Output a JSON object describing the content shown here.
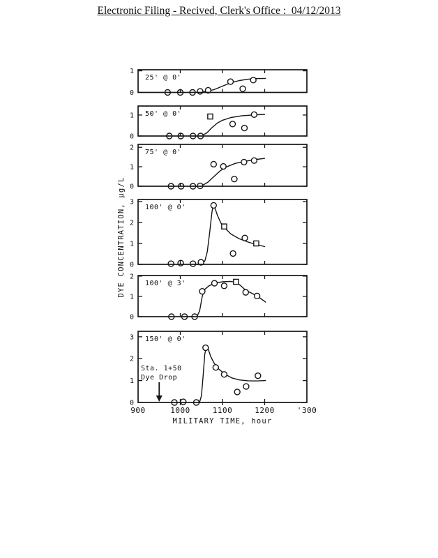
{
  "header": {
    "title": "Electronic Filing - Recived, Clerk's Office :  04/12/2013"
  },
  "colors": {
    "ink": "#151515",
    "paper": "#ffffff"
  },
  "chart_data": {
    "type": "line",
    "title": "",
    "xlabel": "MILITARY TIME, hour",
    "ylabel": "DYE CONCENTRATION, µg/L",
    "xlim": [
      900,
      1300
    ],
    "xticks": [
      900,
      1000,
      1100,
      1200,
      1300
    ],
    "xtick_labels": [
      "900",
      "1000",
      "1100",
      "1200",
      "'300"
    ],
    "inner_xticks": [
      1000,
      1100,
      1200
    ],
    "grid": false,
    "legend": "none",
    "panels": [
      {
        "label": "25' @ 0'",
        "ylim": [
          0,
          1.05
        ],
        "yticks": [
          0,
          1
        ],
        "points": [
          {
            "t": 970,
            "v": 0,
            "m": "circle"
          },
          {
            "t": 1000,
            "v": 0,
            "m": "circle"
          },
          {
            "t": 1029,
            "v": 0,
            "m": "circle"
          },
          {
            "t": 1047,
            "v": 0.05,
            "m": "circle"
          },
          {
            "t": 1066,
            "v": 0.1,
            "m": "circle"
          },
          {
            "t": 1119,
            "v": 0.5,
            "m": "circle"
          },
          {
            "t": 1148,
            "v": 0.17,
            "m": "circle"
          },
          {
            "t": 1173,
            "v": 0.57,
            "m": "circle"
          }
        ],
        "curve": [
          [
            1020,
            0
          ],
          [
            1045,
            0.01
          ],
          [
            1060,
            0.04
          ],
          [
            1080,
            0.13
          ],
          [
            1100,
            0.29
          ],
          [
            1120,
            0.45
          ],
          [
            1140,
            0.55
          ],
          [
            1160,
            0.61
          ],
          [
            1180,
            0.64
          ],
          [
            1202,
            0.65
          ]
        ]
      },
      {
        "label": "50' @ 0'",
        "ylim": [
          0,
          1.43
        ],
        "yticks": [
          0,
          1
        ],
        "points": [
          {
            "t": 974,
            "v": 0,
            "m": "circle"
          },
          {
            "t": 1001,
            "v": 0,
            "m": "circle"
          },
          {
            "t": 1030,
            "v": 0,
            "m": "circle"
          },
          {
            "t": 1048,
            "v": 0,
            "m": "circle"
          },
          {
            "t": 1071,
            "v": 0.93,
            "m": "square"
          },
          {
            "t": 1124,
            "v": 0.57,
            "m": "circle"
          },
          {
            "t": 1152,
            "v": 0.38,
            "m": "circle"
          },
          {
            "t": 1175,
            "v": 1.02,
            "m": "circle"
          }
        ],
        "curve": [
          [
            1040,
            0
          ],
          [
            1052,
            0.03
          ],
          [
            1063,
            0.15
          ],
          [
            1075,
            0.4
          ],
          [
            1088,
            0.62
          ],
          [
            1100,
            0.75
          ],
          [
            1120,
            0.88
          ],
          [
            1145,
            0.96
          ],
          [
            1170,
            1.0
          ],
          [
            1200,
            1.03
          ]
        ]
      },
      {
        "label": "75' @ 0'",
        "ylim": [
          0,
          2.15
        ],
        "yticks": [
          0,
          1,
          2
        ],
        "points": [
          {
            "t": 978,
            "v": 0,
            "m": "circle"
          },
          {
            "t": 1002,
            "v": 0,
            "m": "circle"
          },
          {
            "t": 1030,
            "v": 0,
            "m": "circle"
          },
          {
            "t": 1047,
            "v": 0.02,
            "m": "circle"
          },
          {
            "t": 1079,
            "v": 1.13,
            "m": "circle"
          },
          {
            "t": 1102,
            "v": 1.02,
            "m": "circle"
          },
          {
            "t": 1128,
            "v": 0.37,
            "m": "circle"
          },
          {
            "t": 1151,
            "v": 1.24,
            "m": "circle"
          },
          {
            "t": 1175,
            "v": 1.32,
            "m": "circle"
          }
        ],
        "curve": [
          [
            1040,
            0
          ],
          [
            1052,
            0.04
          ],
          [
            1065,
            0.2
          ],
          [
            1080,
            0.5
          ],
          [
            1095,
            0.8
          ],
          [
            1110,
            1.0
          ],
          [
            1130,
            1.17
          ],
          [
            1150,
            1.27
          ],
          [
            1175,
            1.36
          ],
          [
            1200,
            1.43
          ]
        ]
      },
      {
        "label": "100' @ 0'",
        "ylim": [
          0,
          3.1
        ],
        "yticks": [
          0,
          1,
          2,
          3
        ],
        "points": [
          {
            "t": 978,
            "v": 0.03,
            "m": "circle"
          },
          {
            "t": 1001,
            "v": 0.06,
            "m": "circle"
          },
          {
            "t": 1030,
            "v": 0.03,
            "m": "circle"
          },
          {
            "t": 1049,
            "v": 0.1,
            "m": "circle"
          },
          {
            "t": 1079,
            "v": 2.82,
            "m": "circle"
          },
          {
            "t": 1104,
            "v": 1.81,
            "m": "square"
          },
          {
            "t": 1125,
            "v": 0.52,
            "m": "circle"
          },
          {
            "t": 1153,
            "v": 1.26,
            "m": "circle"
          },
          {
            "t": 1180,
            "v": 1.0,
            "m": "square"
          }
        ],
        "curve": [
          [
            1030,
            0
          ],
          [
            1048,
            0.02
          ],
          [
            1058,
            0.15
          ],
          [
            1064,
            0.6
          ],
          [
            1070,
            1.6
          ],
          [
            1075,
            2.5
          ],
          [
            1078,
            2.82
          ],
          [
            1082,
            2.7
          ],
          [
            1088,
            2.35
          ],
          [
            1096,
            1.98
          ],
          [
            1105,
            1.75
          ],
          [
            1120,
            1.45
          ],
          [
            1140,
            1.22
          ],
          [
            1160,
            1.07
          ],
          [
            1180,
            0.95
          ],
          [
            1200,
            0.85
          ]
        ]
      },
      {
        "label": "100' @ 3'",
        "ylim": [
          0,
          2.03
        ],
        "yticks": [
          0,
          1,
          2
        ],
        "points": [
          {
            "t": 979,
            "v": 0,
            "m": "circle"
          },
          {
            "t": 1010,
            "v": 0,
            "m": "circle"
          },
          {
            "t": 1034,
            "v": 0,
            "m": "circle"
          },
          {
            "t": 1052,
            "v": 1.25,
            "m": "circle"
          },
          {
            "t": 1081,
            "v": 1.65,
            "m": "circle"
          },
          {
            "t": 1104,
            "v": 1.52,
            "m": "circle"
          },
          {
            "t": 1132,
            "v": 1.72,
            "m": "square"
          },
          {
            "t": 1155,
            "v": 1.2,
            "m": "circle"
          },
          {
            "t": 1182,
            "v": 1.02,
            "m": "circle"
          }
        ],
        "curve": [
          [
            1025,
            0
          ],
          [
            1040,
            0.02
          ],
          [
            1046,
            0.3
          ],
          [
            1052,
            1.0
          ],
          [
            1058,
            1.35
          ],
          [
            1068,
            1.52
          ],
          [
            1082,
            1.65
          ],
          [
            1100,
            1.72
          ],
          [
            1118,
            1.74
          ],
          [
            1132,
            1.7
          ],
          [
            1142,
            1.55
          ],
          [
            1155,
            1.3
          ],
          [
            1170,
            1.15
          ],
          [
            1185,
            0.98
          ],
          [
            1202,
            0.72
          ]
        ]
      },
      {
        "label": "150' @ 0'",
        "ylim": [
          0,
          3.25
        ],
        "yticks": [
          0,
          1,
          2,
          3
        ],
        "points": [
          {
            "t": 986,
            "v": 0,
            "m": "circle"
          },
          {
            "t": 1007,
            "v": 0.03,
            "m": "circle"
          },
          {
            "t": 1038,
            "v": 0,
            "m": "circle"
          },
          {
            "t": 1060,
            "v": 2.5,
            "m": "circle"
          },
          {
            "t": 1084,
            "v": 1.6,
            "m": "circle"
          },
          {
            "t": 1104,
            "v": 1.28,
            "m": "circle"
          },
          {
            "t": 1135,
            "v": 0.48,
            "m": "circle"
          },
          {
            "t": 1156,
            "v": 0.73,
            "m": "circle"
          },
          {
            "t": 1184,
            "v": 1.22,
            "m": "circle"
          }
        ],
        "curve": [
          [
            1035,
            0
          ],
          [
            1046,
            0.03
          ],
          [
            1050,
            0.3
          ],
          [
            1054,
            1.2
          ],
          [
            1058,
            2.2
          ],
          [
            1062,
            2.58
          ],
          [
            1066,
            2.45
          ],
          [
            1072,
            2.1
          ],
          [
            1080,
            1.8
          ],
          [
            1090,
            1.55
          ],
          [
            1105,
            1.3
          ],
          [
            1122,
            1.12
          ],
          [
            1140,
            1.03
          ],
          [
            1160,
            0.99
          ],
          [
            1180,
            0.98
          ],
          [
            1202,
            1.0
          ]
        ]
      }
    ],
    "annotation": {
      "lines": [
        "Sta. 1+50",
        "Dye Drop"
      ],
      "arrow_x": 950,
      "panel_index": 5
    }
  }
}
